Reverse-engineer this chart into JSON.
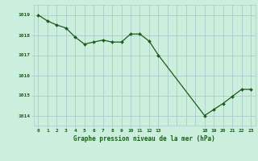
{
  "x": [
    0,
    1,
    2,
    3,
    4,
    5,
    6,
    7,
    8,
    9,
    10,
    11,
    12,
    13,
    18,
    19,
    20,
    21,
    22,
    23
  ],
  "y": [
    1019.0,
    1018.7,
    1018.5,
    1018.35,
    1017.9,
    1017.55,
    1017.65,
    1017.75,
    1017.65,
    1017.65,
    1018.05,
    1018.05,
    1017.7,
    1017.0,
    1014.0,
    1014.3,
    1014.6,
    1014.95,
    1015.3,
    1015.3
  ],
  "line_color": "#1a5c1a",
  "marker_color": "#1a5c1a",
  "bg_color": "#cceedd",
  "grid_color": "#aacccc",
  "xlabel": "Graphe pression niveau de la mer (hPa)",
  "xlabel_color": "#1a5c1a",
  "xtick_positions": [
    0,
    1,
    2,
    3,
    4,
    5,
    6,
    7,
    8,
    9,
    10,
    11,
    12,
    13,
    18,
    19,
    20,
    21,
    22,
    23
  ],
  "xtick_labels": [
    "0",
    "1",
    "2",
    "3",
    "4",
    "5",
    "6",
    "7",
    "8",
    "9",
    "10",
    "11",
    "12",
    "13",
    "18",
    "19",
    "20",
    "21",
    "22",
    "23"
  ],
  "ytick_positions": [
    1014,
    1015,
    1016,
    1017,
    1018,
    1019
  ],
  "ylim": [
    1013.5,
    1019.5
  ],
  "xlim": [
    -0.5,
    23.5
  ]
}
